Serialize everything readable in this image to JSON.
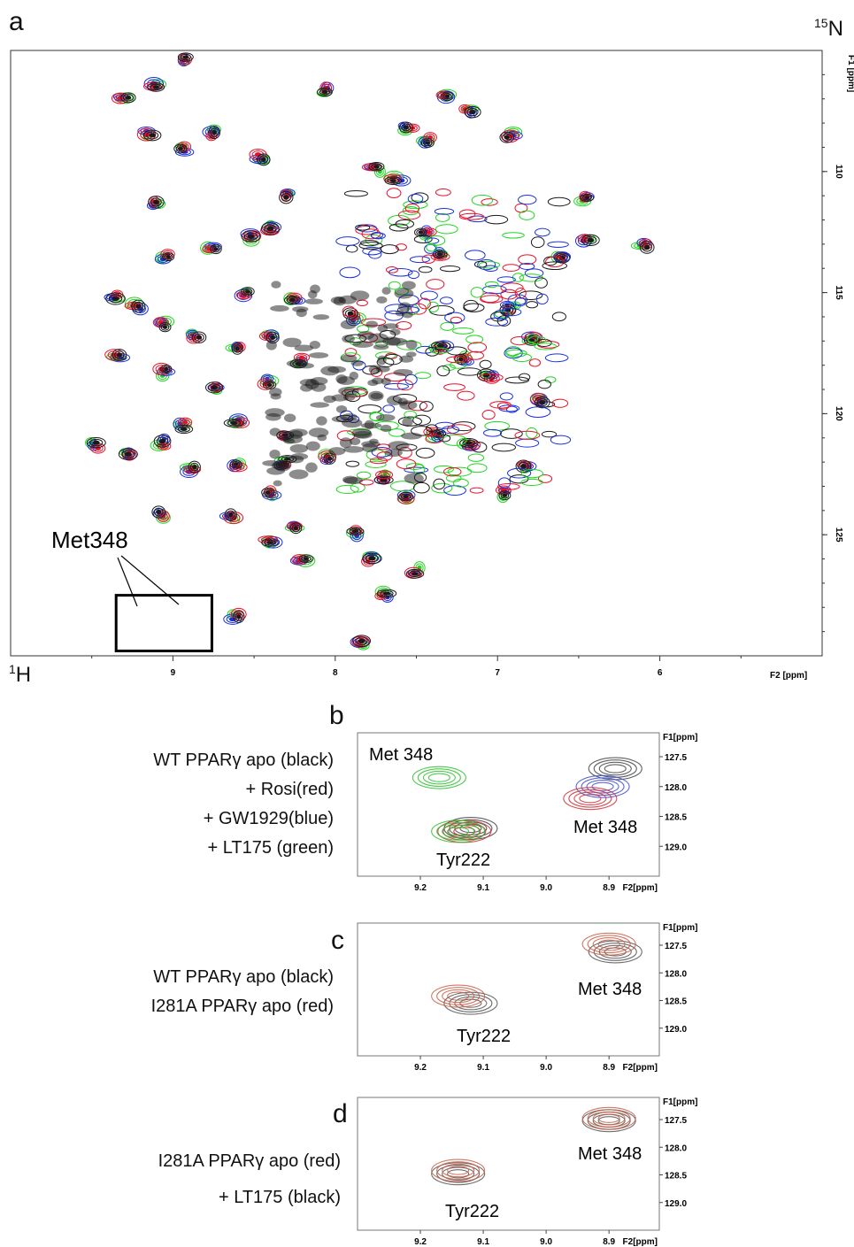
{
  "figure": {
    "panel_labels": [
      "a",
      "b",
      "c",
      "d"
    ],
    "nucleus_x": {
      "mass": "1",
      "symbol": "H"
    },
    "nucleus_y": {
      "mass": "15",
      "symbol": "N"
    }
  },
  "chart_data": [
    {
      "type": "scatter",
      "panel": "a",
      "title": "",
      "xlabel": "F2 [ppm]",
      "ylabel": "F1 [ppm]",
      "xlim": [
        10.0,
        5.0
      ],
      "ylim": [
        130.0,
        105.0
      ],
      "x_ticks": [
        9,
        8,
        7,
        6
      ],
      "y_ticks": [
        110,
        115,
        120,
        125
      ],
      "annotation": "Met348",
      "box": {
        "x": [
          9.35,
          8.76
        ],
        "y": [
          127.5,
          129.8
        ]
      },
      "colors": {
        "black": "#1a1a1a",
        "red": "#e8102a",
        "blue": "#1830e0",
        "green": "#1fd61f"
      },
      "peaks": [
        {
          "x": 8.93,
          "y": 105.4
        },
        {
          "x": 9.1,
          "y": 106.5
        },
        {
          "x": 8.05,
          "y": 106.6
        },
        {
          "x": 9.3,
          "y": 107.0
        },
        {
          "x": 9.15,
          "y": 108.4
        },
        {
          "x": 8.75,
          "y": 108.4
        },
        {
          "x": 8.45,
          "y": 109.4
        },
        {
          "x": 8.93,
          "y": 109.1
        },
        {
          "x": 8.3,
          "y": 111.0
        },
        {
          "x": 9.1,
          "y": 111.3
        },
        {
          "x": 8.4,
          "y": 112.3
        },
        {
          "x": 8.52,
          "y": 112.7
        },
        {
          "x": 8.76,
          "y": 113.2
        },
        {
          "x": 9.05,
          "y": 113.5
        },
        {
          "x": 7.35,
          "y": 113.5
        },
        {
          "x": 6.1,
          "y": 113.0
        },
        {
          "x": 6.45,
          "y": 112.8
        },
        {
          "x": 6.62,
          "y": 113.5
        },
        {
          "x": 8.56,
          "y": 115.0
        },
        {
          "x": 8.25,
          "y": 115.3
        },
        {
          "x": 9.35,
          "y": 115.2
        },
        {
          "x": 9.22,
          "y": 115.6
        },
        {
          "x": 9.05,
          "y": 116.3
        },
        {
          "x": 8.86,
          "y": 116.8
        },
        {
          "x": 8.4,
          "y": 116.8
        },
        {
          "x": 8.6,
          "y": 117.3
        },
        {
          "x": 9.35,
          "y": 117.6
        },
        {
          "x": 8.2,
          "y": 117.8
        },
        {
          "x": 9.05,
          "y": 118.3
        },
        {
          "x": 8.72,
          "y": 118.9
        },
        {
          "x": 8.43,
          "y": 118.7
        },
        {
          "x": 8.95,
          "y": 120.5
        },
        {
          "x": 8.6,
          "y": 120.3
        },
        {
          "x": 8.3,
          "y": 121.0
        },
        {
          "x": 9.48,
          "y": 121.3
        },
        {
          "x": 9.28,
          "y": 121.6
        },
        {
          "x": 9.08,
          "y": 121.2
        },
        {
          "x": 8.88,
          "y": 122.3
        },
        {
          "x": 8.6,
          "y": 122.2
        },
        {
          "x": 8.32,
          "y": 122.0
        },
        {
          "x": 8.05,
          "y": 121.8
        },
        {
          "x": 7.38,
          "y": 120.8
        },
        {
          "x": 7.18,
          "y": 121.3
        },
        {
          "x": 6.84,
          "y": 122.2
        },
        {
          "x": 6.98,
          "y": 123.3
        },
        {
          "x": 7.55,
          "y": 123.5
        },
        {
          "x": 7.7,
          "y": 122.6
        },
        {
          "x": 8.4,
          "y": 123.3
        },
        {
          "x": 8.25,
          "y": 124.6
        },
        {
          "x": 8.64,
          "y": 124.3
        },
        {
          "x": 9.08,
          "y": 124.2
        },
        {
          "x": 8.4,
          "y": 125.2
        },
        {
          "x": 7.85,
          "y": 124.9
        },
        {
          "x": 7.8,
          "y": 126.0
        },
        {
          "x": 7.5,
          "y": 126.5
        },
        {
          "x": 8.2,
          "y": 126.0
        },
        {
          "x": 7.7,
          "y": 127.5
        },
        {
          "x": 8.62,
          "y": 128.4
        },
        {
          "x": 7.85,
          "y": 129.5
        },
        {
          "x": 7.35,
          "y": 117.3
        },
        {
          "x": 7.2,
          "y": 117.8
        },
        {
          "x": 6.92,
          "y": 115.6
        },
        {
          "x": 6.8,
          "y": 116.9
        },
        {
          "x": 7.05,
          "y": 118.5
        },
        {
          "x": 6.75,
          "y": 119.5
        },
        {
          "x": 6.92,
          "y": 108.5
        },
        {
          "x": 7.18,
          "y": 107.5
        },
        {
          "x": 7.32,
          "y": 106.8
        },
        {
          "x": 7.42,
          "y": 108.7
        },
        {
          "x": 7.55,
          "y": 108.2
        },
        {
          "x": 7.45,
          "y": 112.6
        },
        {
          "x": 7.62,
          "y": 110.3
        },
        {
          "x": 7.75,
          "y": 109.9
        },
        {
          "x": 6.46,
          "y": 111.1
        },
        {
          "x": 7.88,
          "y": 116.0
        }
      ]
    },
    {
      "type": "scatter",
      "panel": "b",
      "title": "",
      "xlabel": "F2[ppm]",
      "ylabel": "F1[ppm]",
      "xlim": [
        9.3,
        8.82
      ],
      "ylim": [
        127.1,
        129.5
      ],
      "x_ticks": [
        "9.2",
        "9.1",
        "9.0",
        "8.9"
      ],
      "y_ticks": [
        "127.5",
        "128.0",
        "128.5",
        "129.0"
      ],
      "legend": [
        "WT PPARγ apo (black)",
        "+ Rosi(red)",
        "+ GW1929(blue)",
        "+ LT175 (green)"
      ],
      "annotations": [
        "Met 348",
        "Met 348",
        "Tyr222"
      ],
      "peaks": [
        {
          "series": "black",
          "x": 8.89,
          "y": 127.7
        },
        {
          "series": "blue",
          "x": 8.91,
          "y": 128.0
        },
        {
          "series": "red",
          "x": 8.93,
          "y": 128.2
        },
        {
          "series": "green",
          "x": 9.17,
          "y": 127.85
        },
        {
          "series": "black",
          "x": 9.12,
          "y": 128.7
        },
        {
          "series": "red",
          "x": 9.13,
          "y": 128.75
        },
        {
          "series": "green",
          "x": 9.14,
          "y": 128.75
        }
      ]
    },
    {
      "type": "scatter",
      "panel": "c",
      "title": "",
      "xlabel": "F2[ppm]",
      "ylabel": "F1[ppm]",
      "xlim": [
        9.3,
        8.82
      ],
      "ylim": [
        127.1,
        129.5
      ],
      "x_ticks": [
        "9.2",
        "9.1",
        "9.0",
        "8.9"
      ],
      "y_ticks": [
        "127.5",
        "128.0",
        "128.5",
        "129.0"
      ],
      "legend": [
        "WT PPARγ apo (black)",
        "I281A PPARγ apo (red)"
      ],
      "annotations": [
        "Met 348",
        "Tyr222"
      ],
      "peaks": [
        {
          "series": "black",
          "x": 8.89,
          "y": 127.62
        },
        {
          "series": "red",
          "x": 8.9,
          "y": 127.48
        },
        {
          "series": "black",
          "x": 9.12,
          "y": 128.55
        },
        {
          "series": "red",
          "x": 9.14,
          "y": 128.42
        }
      ]
    },
    {
      "type": "scatter",
      "panel": "d",
      "title": "",
      "xlabel": "F2[ppm]",
      "ylabel": "F1[ppm]",
      "xlim": [
        9.3,
        8.82
      ],
      "ylim": [
        127.1,
        129.5
      ],
      "x_ticks": [
        "9.2",
        "9.1",
        "9.0",
        "8.9"
      ],
      "y_ticks": [
        "127.5",
        "128.0",
        "128.5",
        "129.0"
      ],
      "legend": [
        "I281A PPARγ apo (red)",
        "+ LT175 (black)"
      ],
      "annotations": [
        "Met 348",
        "Tyr222"
      ],
      "peaks": [
        {
          "series": "black",
          "x": 8.9,
          "y": 127.52
        },
        {
          "series": "red",
          "x": 8.9,
          "y": 127.48
        },
        {
          "series": "black",
          "x": 9.14,
          "y": 128.48
        },
        {
          "series": "red",
          "x": 9.14,
          "y": 128.42
        }
      ]
    }
  ]
}
